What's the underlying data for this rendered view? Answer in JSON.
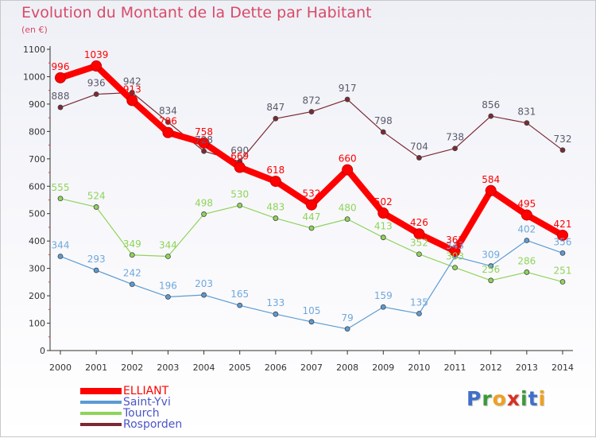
{
  "title": "Evolution du Montant de la Dette par Habitant",
  "unit": "(en €)",
  "logo": {
    "letters": [
      {
        "ch": "P",
        "color": "#3f6fc9"
      },
      {
        "ch": "r",
        "color": "#3a9a3a"
      },
      {
        "ch": "o",
        "color": "#f0a020"
      },
      {
        "ch": "x",
        "color": "#d83020"
      },
      {
        "ch": "i",
        "color": "#3a9a3a"
      },
      {
        "ch": "t",
        "color": "#3f6fc9"
      },
      {
        "ch": "i",
        "color": "#f0a020"
      }
    ]
  },
  "chart_data": {
    "type": "line",
    "title": "Evolution du Montant de la Dette par Habitant",
    "ylabel": "(en €)",
    "xlabel": "",
    "ylim": [
      0,
      1100
    ],
    "yticks": [
      0,
      100,
      200,
      300,
      400,
      500,
      600,
      700,
      800,
      900,
      1000,
      1100
    ],
    "x": [
      "2000",
      "2001",
      "2002",
      "2003",
      "2004",
      "2005",
      "2006",
      "2007",
      "2008",
      "2009",
      "2010",
      "2011",
      "2012",
      "2013",
      "2014"
    ],
    "grid": false,
    "legend_position": "bottom-left",
    "series": [
      {
        "name": "ELLIANT",
        "color": "#ff0000",
        "labelColor": "#ff0000",
        "values": [
          996,
          1039,
          913,
          796,
          758,
          669,
          618,
          532,
          660,
          502,
          426,
          363,
          584,
          495,
          421
        ]
      },
      {
        "name": "Saint-Yvi",
        "color": "#5b9bd5",
        "labelColor": "#6fa8dc",
        "values": [
          344,
          293,
          242,
          196,
          203,
          165,
          133,
          105,
          79,
          159,
          135,
          343,
          309,
          402,
          356
        ]
      },
      {
        "name": "Tourch",
        "color": "#8fd45a",
        "labelColor": "#8fd45a",
        "values": [
          555,
          524,
          349,
          344,
          498,
          530,
          483,
          447,
          480,
          413,
          352,
          303,
          256,
          286,
          251
        ]
      },
      {
        "name": "Rosporden",
        "color": "#7b2a33",
        "labelColor": "#5a5a6a",
        "values": [
          888,
          936,
          942,
          834,
          728,
          690,
          847,
          872,
          917,
          798,
          704,
          738,
          856,
          831,
          732
        ]
      }
    ]
  }
}
